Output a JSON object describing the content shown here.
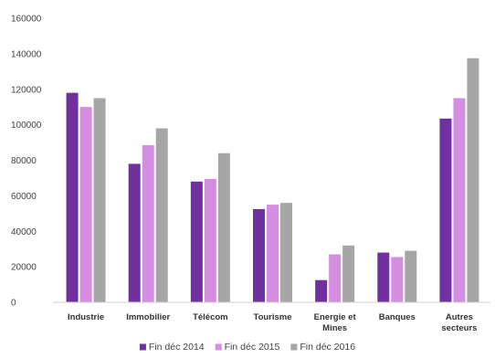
{
  "chart_data": {
    "type": "bar",
    "title": "",
    "xlabel": "",
    "ylabel": "",
    "ylim": [
      0,
      160000
    ],
    "yticks": [
      0,
      20000,
      40000,
      60000,
      80000,
      100000,
      120000,
      140000,
      160000
    ],
    "grid": false,
    "legend_position": "bottom",
    "categories": [
      [
        "Industrie"
      ],
      [
        "Immobilier"
      ],
      [
        "Télécom"
      ],
      [
        "Tourisme"
      ],
      [
        "Energie et",
        "Mines"
      ],
      [
        "Banques"
      ],
      [
        "Autres",
        "secteurs"
      ]
    ],
    "series": [
      {
        "name": "Fin déc 2014",
        "color": "#7030a0",
        "values": [
          118000,
          78000,
          68000,
          52500,
          12500,
          28000,
          103500
        ]
      },
      {
        "name": "Fin déc 2015",
        "color": "#d48ee0",
        "values": [
          110000,
          88500,
          69500,
          55000,
          27000,
          25500,
          115000
        ]
      },
      {
        "name": "Fin déc 2016",
        "color": "#a6a6a6",
        "values": [
          115000,
          98000,
          84000,
          56000,
          32000,
          29000,
          137500
        ]
      }
    ]
  }
}
